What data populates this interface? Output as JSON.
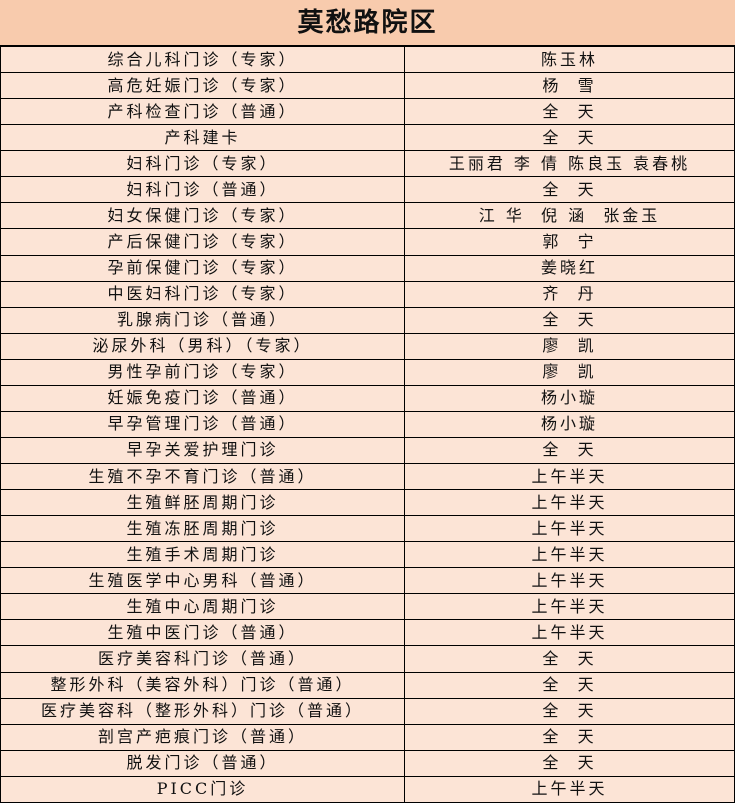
{
  "header": {
    "title": "莫愁路院区"
  },
  "table": {
    "rows": [
      [
        "综合儿科门诊（专家）",
        "陈玉林"
      ],
      [
        "高危妊娠门诊（专家）",
        "杨  雪"
      ],
      [
        "产科检查门诊（普通）",
        "全  天"
      ],
      [
        "产科建卡",
        "全  天"
      ],
      [
        "妇科门诊（专家）",
        "王丽君 李 倩 陈良玉 袁春桃"
      ],
      [
        "妇科门诊（普通）",
        "全  天"
      ],
      [
        "妇女保健门诊（专家）",
        "江 华  倪 涵  张金玉"
      ],
      [
        "产后保健门诊（专家）",
        "郭  宁"
      ],
      [
        "孕前保健门诊（专家）",
        "姜晓红"
      ],
      [
        "中医妇科门诊（专家）",
        "齐  丹"
      ],
      [
        "乳腺病门诊（普通）",
        "全  天"
      ],
      [
        "泌尿外科（男科）（专家）",
        "廖  凯"
      ],
      [
        "男性孕前门诊（专家）",
        "廖  凯"
      ],
      [
        "妊娠免疫门诊（普通）",
        "杨小璇"
      ],
      [
        "早孕管理门诊（普通）",
        "杨小璇"
      ],
      [
        "早孕关爱护理门诊",
        "全  天"
      ],
      [
        "生殖不孕不育门诊（普通）",
        "上午半天"
      ],
      [
        "生殖鲜胚周期门诊",
        "上午半天"
      ],
      [
        "生殖冻胚周期门诊",
        "上午半天"
      ],
      [
        "生殖手术周期门诊",
        "上午半天"
      ],
      [
        "生殖医学中心男科（普通）",
        "上午半天"
      ],
      [
        "生殖中心周期门诊",
        "上午半天"
      ],
      [
        "生殖中医门诊（普通）",
        "上午半天"
      ],
      [
        "医疗美容科门诊（普通）",
        "全  天"
      ],
      [
        "整形外科（美容外科）门诊（普通）",
        "全  天"
      ],
      [
        "医疗美容科（整形外科）门诊（普通）",
        "全  天"
      ],
      [
        "剖宫产疤痕门诊（普通）",
        "全  天"
      ],
      [
        "脱发门诊（普通）",
        "全  天"
      ],
      [
        "PICC门诊",
        "上午半天"
      ]
    ]
  }
}
